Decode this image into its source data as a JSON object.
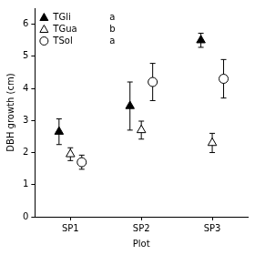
{
  "chart_data": {
    "type": "scatter",
    "x_label": "Plot",
    "y_label": "DBH growth (cm)",
    "categories": [
      "SP1",
      "SP2",
      "SP3"
    ],
    "ylim": [
      0,
      6.5
    ],
    "yticks": [
      0,
      1,
      2,
      3,
      4,
      5,
      6
    ],
    "grid": false,
    "legend": "top-left",
    "series": [
      {
        "name": "TGli",
        "letter": "a",
        "marker": "filled-triangle",
        "color": "#000000",
        "values": [
          2.65,
          3.45,
          5.5
        ],
        "error": [
          0.4,
          0.75,
          0.22
        ]
      },
      {
        "name": "TGua",
        "letter": "b",
        "marker": "open-triangle",
        "color": "#000000",
        "values": [
          1.95,
          2.7,
          2.3
        ],
        "error": [
          0.2,
          0.28,
          0.3
        ]
      },
      {
        "name": "TSol",
        "letter": "a",
        "marker": "open-circle",
        "color": "#000000",
        "values": [
          1.7,
          4.2,
          4.3
        ],
        "error": [
          0.22,
          0.58,
          0.6
        ]
      }
    ]
  }
}
